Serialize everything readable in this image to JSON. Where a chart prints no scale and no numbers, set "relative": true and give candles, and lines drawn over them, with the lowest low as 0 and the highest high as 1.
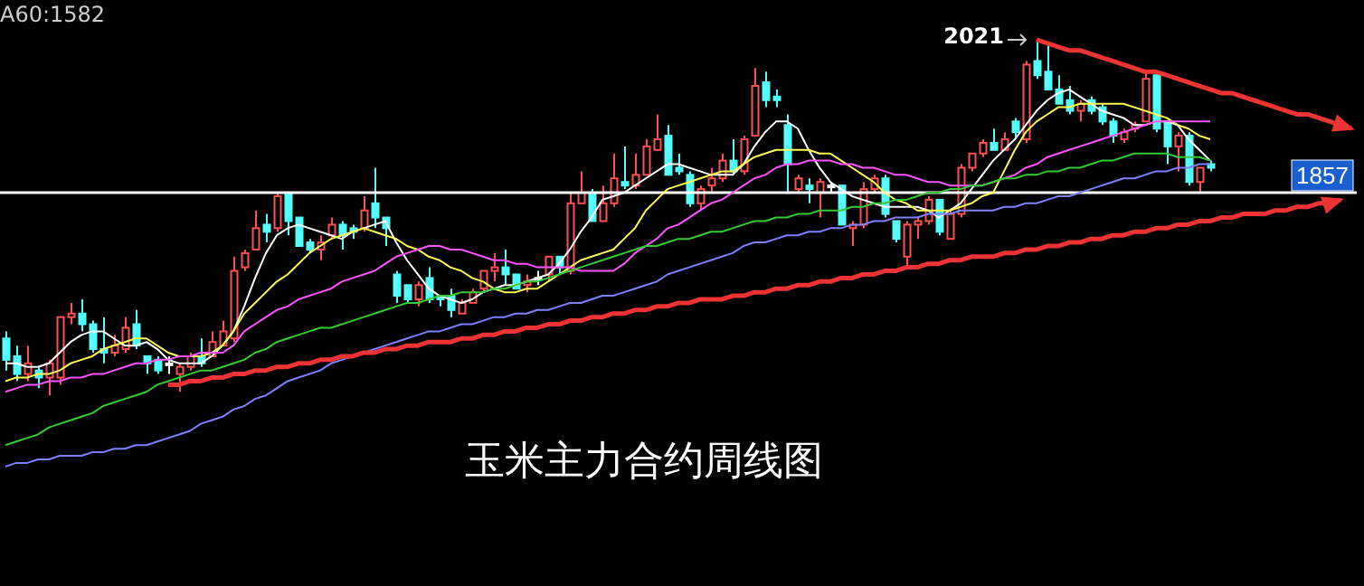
{
  "chart_data": {
    "type": "candlestick",
    "title": "玉米主力合约周线图",
    "relative": true,
    "annotations": [
      "A60:1582",
      "2021",
      "1857"
    ],
    "categories": [
      null,
      null,
      null,
      null,
      null,
      null,
      null,
      null,
      null,
      null,
      null,
      null,
      null,
      null,
      null,
      null,
      null,
      null,
      null,
      null,
      null,
      null,
      null,
      null,
      null,
      null,
      null,
      null,
      null,
      null,
      null,
      null,
      null,
      null,
      null,
      null,
      null,
      null,
      null,
      null,
      null,
      null,
      null,
      null,
      null,
      null,
      null,
      null,
      null,
      null,
      null,
      null,
      null,
      null,
      null,
      null,
      null,
      null,
      null,
      null,
      null,
      null,
      null,
      null,
      null,
      null,
      null,
      null,
      null,
      null,
      null,
      null,
      null,
      null,
      null,
      null,
      null,
      null,
      null,
      null,
      null,
      null,
      null,
      null,
      null,
      null,
      null,
      null,
      null,
      null,
      null,
      null,
      null,
      null,
      null,
      null,
      null,
      null,
      null,
      null,
      null,
      null,
      null,
      null,
      null,
      null,
      null,
      null,
      null,
      null,
      null,
      null,
      null,
      null,
      null,
      null,
      null,
      null,
      null,
      null,
      null,
      null,
      null,
      null,
      null
    ],
    "ohlc": [
      [
        0.16,
        0.18,
        0.07,
        0.1
      ],
      [
        0.11,
        0.14,
        0.04,
        0.06
      ],
      [
        0.06,
        0.14,
        0.04,
        0.09
      ],
      [
        0.07,
        0.08,
        0.02,
        0.05
      ],
      [
        0.05,
        0.1,
        0,
        0.09
      ],
      [
        0.05,
        0.22,
        0.03,
        0.22
      ],
      [
        0.22,
        0.26,
        0.2,
        0.23
      ],
      [
        0.23,
        0.27,
        0.18,
        0.2
      ],
      [
        0.2,
        0.21,
        0.12,
        0.13
      ],
      [
        0.13,
        0.22,
        0.09,
        0.12
      ],
      [
        0.12,
        0.17,
        0.11,
        0.14
      ],
      [
        0.13,
        0.22,
        0.12,
        0.19
      ],
      [
        0.2,
        0.24,
        0.13,
        0.14
      ],
      [
        0.11,
        0.11,
        0.06,
        0.09
      ],
      [
        0.1,
        0.11,
        0.06,
        0.07
      ],
      [
        0.09,
        0.11,
        0.06,
        0.09
      ],
      [
        0.06,
        0.09,
        0.01,
        0.08
      ],
      [
        0.08,
        0.12,
        0.07,
        0.11
      ],
      [
        0.11,
        0.16,
        0.08,
        0.09
      ],
      [
        0.11,
        0.18,
        0.11,
        0.15
      ],
      [
        0.14,
        0.21,
        0.14,
        0.18
      ],
      [
        0.16,
        0.39,
        0.15,
        0.35
      ],
      [
        0.36,
        0.41,
        0.35,
        0.4
      ],
      [
        0.41,
        0.52,
        0.41,
        0.47
      ],
      [
        0.48,
        0.51,
        0.43,
        0.46
      ],
      [
        0.47,
        0.57,
        0.46,
        0.56
      ],
      [
        0.57,
        0.57,
        0.45,
        0.49
      ],
      [
        0.5,
        0.5,
        0.42,
        0.42
      ],
      [
        0.43,
        0.44,
        0.4,
        0.41
      ],
      [
        0.41,
        0.45,
        0.38,
        0.43
      ],
      [
        0.45,
        0.5,
        0.44,
        0.48
      ],
      [
        0.48,
        0.49,
        0.41,
        0.45
      ],
      [
        0.47,
        0.48,
        0.44,
        0.46
      ],
      [
        0.47,
        0.56,
        0.46,
        0.52
      ],
      [
        0.54,
        0.64,
        0.47,
        0.5
      ],
      [
        0.5,
        0.5,
        0.42,
        0.47
      ],
      [
        0.34,
        0.35,
        0.26,
        0.28
      ],
      [
        0.31,
        0.31,
        0.26,
        0.27
      ],
      [
        0.27,
        0.32,
        0.25,
        0.31
      ],
      [
        0.33,
        0.36,
        0.26,
        0.27
      ],
      [
        0.28,
        0.28,
        0.25,
        0.27
      ],
      [
        0.28,
        0.3,
        0.22,
        0.24
      ],
      [
        0.23,
        0.27,
        0.23,
        0.26
      ],
      [
        0.26,
        0.3,
        0.26,
        0.29
      ],
      [
        0.3,
        0.35,
        0.29,
        0.35
      ],
      [
        0.35,
        0.4,
        0.32,
        0.36
      ],
      [
        0.36,
        0.41,
        0.31,
        0.34
      ],
      [
        0.34,
        0.34,
        0.3,
        0.3
      ],
      [
        0.31,
        0.34,
        0.29,
        0.32
      ],
      [
        0.33,
        0.35,
        0.31,
        0.33
      ],
      [
        0.34,
        0.39,
        0.32,
        0.39
      ],
      [
        0.39,
        0.39,
        0.34,
        0.36
      ],
      [
        0.35,
        0.57,
        0.34,
        0.54
      ],
      [
        0.54,
        0.63,
        0.54,
        0.57
      ],
      [
        0.57,
        0.58,
        0.49,
        0.49
      ],
      [
        0.49,
        0.59,
        0.49,
        0.54
      ],
      [
        0.54,
        0.68,
        0.53,
        0.61
      ],
      [
        0.6,
        0.7,
        0.58,
        0.59
      ],
      [
        0.59,
        0.68,
        0.58,
        0.62
      ],
      [
        0.62,
        0.72,
        0.62,
        0.7
      ],
      [
        0.69,
        0.79,
        0.69,
        0.72
      ],
      [
        0.73,
        0.76,
        0.62,
        0.62
      ],
      [
        0.64,
        0.68,
        0.62,
        0.63
      ],
      [
        0.62,
        0.63,
        0.53,
        0.54
      ],
      [
        0.54,
        0.59,
        0.52,
        0.58
      ],
      [
        0.59,
        0.64,
        0.57,
        0.61
      ],
      [
        0.61,
        0.68,
        0.6,
        0.66
      ],
      [
        0.66,
        0.72,
        0.62,
        0.63
      ],
      [
        0.63,
        0.73,
        0.62,
        0.72
      ],
      [
        0.73,
        0.92,
        0.73,
        0.87
      ],
      [
        0.88,
        0.91,
        0.81,
        0.83
      ],
      [
        0.84,
        0.86,
        0.81,
        0.83
      ],
      [
        0.76,
        0.79,
        0.57,
        0.65
      ],
      [
        0.58,
        0.62,
        0.57,
        0.61
      ],
      [
        0.59,
        0.61,
        0.54,
        0.58
      ],
      [
        0.57,
        0.61,
        0.5,
        0.6
      ],
      [
        0.59,
        0.6,
        0.57,
        0.59
      ],
      [
        0.59,
        0.59,
        0.48,
        0.48
      ],
      [
        0.47,
        0.49,
        0.42,
        0.48
      ],
      [
        0.48,
        0.6,
        0.47,
        0.58
      ],
      [
        0.58,
        0.62,
        0.57,
        0.61
      ],
      [
        0.61,
        0.62,
        0.5,
        0.51
      ],
      [
        0.49,
        0.49,
        0.43,
        0.44
      ],
      [
        0.39,
        0.49,
        0.36,
        0.48
      ],
      [
        0.48,
        0.5,
        0.44,
        0.49
      ],
      [
        0.49,
        0.56,
        0.48,
        0.55
      ],
      [
        0.55,
        0.55,
        0.45,
        0.46
      ],
      [
        0.44,
        0.52,
        0.44,
        0.51
      ],
      [
        0.51,
        0.65,
        0.5,
        0.64
      ],
      [
        0.64,
        0.68,
        0.63,
        0.68
      ],
      [
        0.68,
        0.72,
        0.67,
        0.71
      ],
      [
        0.71,
        0.75,
        0.69,
        0.69
      ],
      [
        0.69,
        0.74,
        0.69,
        0.72
      ],
      [
        0.77,
        0.78,
        0.72,
        0.74
      ],
      [
        0.72,
        0.94,
        0.71,
        0.93
      ],
      [
        0.94,
        1.0,
        0.89,
        0.9
      ],
      [
        0.91,
        0.99,
        0.86,
        0.86
      ],
      [
        0.86,
        0.9,
        0.82,
        0.82
      ],
      [
        0.83,
        0.87,
        0.79,
        0.8
      ],
      [
        0.8,
        0.83,
        0.77,
        0.82
      ],
      [
        0.83,
        0.84,
        0.79,
        0.8
      ],
      [
        0.81,
        0.82,
        0.76,
        0.77
      ],
      [
        0.77,
        0.78,
        0.71,
        0.73
      ],
      [
        0.72,
        0.75,
        0.71,
        0.74
      ],
      [
        0.75,
        0.77,
        0.74,
        0.76
      ],
      [
        0.77,
        0.91,
        0.77,
        0.89
      ],
      [
        0.9,
        0.91,
        0.74,
        0.75
      ],
      [
        0.77,
        0.77,
        0.65,
        0.7
      ],
      [
        0.7,
        0.74,
        0.63,
        0.73
      ],
      [
        0.73,
        0.74,
        0.59,
        0.6
      ],
      [
        0.6,
        0.64,
        0.57,
        0.64
      ],
      [
        0.65,
        0.66,
        0.63,
        0.64
      ],
      null,
      null,
      null,
      null,
      null,
      null,
      null,
      null,
      null,
      null,
      null,
      null,
      null
    ],
    "colors": [
      "#54fcfc",
      "#54fcfc",
      "#ff5050",
      "#54fcfc",
      "#ff5050",
      "#ff5050",
      "#ff5050",
      "#54fcfc",
      "#54fcfc",
      "#54fcfc",
      "#ff5050",
      "#ff5050",
      "#54fcfc",
      "#54fcfc",
      "#54fcfc",
      "#ffffff",
      "#ff5050",
      "#ff5050",
      "#54fcfc",
      "#ff5050",
      "#ff5050",
      "#ff5050",
      "#ff5050",
      "#ff5050",
      "#54fcfc",
      "#ff5050",
      "#54fcfc",
      "#54fcfc",
      "#54fcfc",
      "#ff5050",
      "#ff5050",
      "#54fcfc",
      "#54fcfc",
      "#ff5050",
      "#54fcfc",
      "#54fcfc",
      "#54fcfc",
      "#54fcfc",
      "#ff5050",
      "#54fcfc",
      "#54fcfc",
      "#54fcfc",
      "#ff5050",
      "#ff5050",
      "#ff5050",
      "#ff5050",
      "#54fcfc",
      "#54fcfc",
      "#ff5050",
      "#ffffff",
      "#ff5050",
      "#54fcfc",
      "#ff5050",
      "#ff5050",
      "#54fcfc",
      "#ff5050",
      "#ff5050",
      "#54fcfc",
      "#ff5050",
      "#ff5050",
      "#ff5050",
      "#54fcfc",
      "#54fcfc",
      "#54fcfc",
      "#ff5050",
      "#ff5050",
      "#ff5050",
      "#54fcfc",
      "#ff5050",
      "#ff5050",
      "#54fcfc",
      "#54fcfc",
      "#54fcfc",
      "#ff5050",
      "#54fcfc",
      "#ff5050",
      "#ffffff",
      "#54fcfc",
      "#ff5050",
      "#ff5050",
      "#ff5050",
      "#54fcfc",
      "#54fcfc",
      "#ff5050",
      "#ff5050",
      "#ff5050",
      "#54fcfc",
      "#ff5050",
      "#ff5050",
      "#ff5050",
      "#ff5050",
      "#54fcfc",
      "#ff5050",
      "#54fcfc",
      "#ff5050",
      "#54fcfc",
      "#54fcfc",
      "#54fcfc",
      "#54fcfc",
      "#ff5050",
      "#54fcfc",
      "#54fcfc",
      "#54fcfc",
      "#ff5050",
      "#ff5050",
      "#ff5050",
      "#54fcfc",
      "#54fcfc",
      "#ff5050",
      "#54fcfc",
      "#ff5050",
      "#54fcfc",
      null,
      null,
      null,
      null,
      null,
      null,
      null,
      null,
      null,
      null,
      null,
      null,
      null
    ],
    "series": [
      {
        "type": "line",
        "color": "#ffffff",
        "values": [
          0.09,
          0.09,
          0.08,
          0.08,
          0.09,
          0.12,
          0.15,
          0.17,
          0.18,
          0.18,
          0.16,
          0.14,
          0.14,
          0.15,
          0.13,
          0.1,
          0.09,
          0.09,
          0.09,
          0.11,
          0.14,
          0.18,
          0.25,
          0.33,
          0.4,
          0.45,
          0.47,
          0.48,
          0.47,
          0.46,
          0.45,
          0.44,
          0.46,
          0.47,
          0.48,
          0.49,
          0.43,
          0.38,
          0.34,
          0.3,
          0.28,
          0.27,
          0.26,
          0.27,
          0.29,
          0.3,
          0.31,
          0.31,
          0.32,
          0.33,
          0.34,
          0.37,
          0.41,
          0.46,
          0.5,
          0.55,
          0.56,
          0.57,
          0.59,
          0.61,
          0.63,
          0.65,
          0.65,
          0.64,
          0.63,
          0.62,
          0.62,
          0.62,
          0.65,
          0.7,
          0.74,
          0.77,
          0.77,
          0.75,
          0.69,
          0.64,
          0.6,
          0.58,
          0.56,
          0.55,
          0.54,
          0.53,
          0.53,
          0.53,
          0.53,
          0.52,
          0.5,
          0.52,
          0.54,
          0.58,
          0.62,
          0.66,
          0.69,
          0.72,
          0.76,
          0.8,
          0.83,
          0.85,
          0.86,
          0.84,
          0.82,
          0.8,
          0.79,
          0.78,
          0.76,
          0.76,
          0.77,
          0.77,
          0.76,
          0.72,
          0.69,
          0.66,
          null,
          null,
          null,
          null,
          null,
          null,
          null,
          null,
          null,
          null,
          null,
          null,
          null
        ]
      },
      {
        "type": "line",
        "color": "#ffff54",
        "values": [
          0.04,
          0.05,
          0.05,
          0.06,
          0.06,
          0.07,
          0.09,
          0.1,
          0.11,
          0.13,
          0.14,
          0.15,
          0.16,
          0.16,
          0.14,
          0.12,
          0.11,
          0.11,
          0.11,
          0.12,
          0.14,
          0.18,
          0.23,
          0.26,
          0.29,
          0.32,
          0.34,
          0.37,
          0.4,
          0.42,
          0.44,
          0.45,
          0.46,
          0.47,
          0.46,
          0.45,
          0.44,
          0.42,
          0.41,
          0.39,
          0.38,
          0.36,
          0.35,
          0.33,
          0.32,
          0.3,
          0.29,
          0.29,
          0.3,
          0.3,
          0.32,
          0.34,
          0.36,
          0.38,
          0.39,
          0.4,
          0.41,
          0.44,
          0.47,
          0.52,
          0.55,
          0.58,
          0.59,
          0.6,
          0.61,
          0.62,
          0.63,
          0.63,
          0.65,
          0.67,
          0.68,
          0.69,
          0.69,
          0.69,
          0.69,
          0.68,
          0.68,
          0.66,
          0.64,
          0.62,
          0.6,
          0.57,
          0.55,
          0.54,
          0.52,
          0.52,
          0.52,
          0.52,
          0.53,
          0.54,
          0.56,
          0.57,
          0.63,
          0.69,
          0.74,
          0.77,
          0.79,
          0.81,
          0.81,
          0.82,
          0.82,
          0.82,
          0.82,
          0.82,
          0.81,
          0.8,
          0.79,
          0.78,
          0.76,
          0.75,
          0.73,
          0.72,
          null,
          null,
          null,
          null,
          null,
          null,
          null,
          null,
          null,
          null,
          null,
          null,
          null
        ]
      },
      {
        "type": "line",
        "color": "#ff54ff",
        "values": [
          0.01,
          0.02,
          0.03,
          0.03,
          0.04,
          0.04,
          0.05,
          0.05,
          0.06,
          0.06,
          0.07,
          0.08,
          0.09,
          0.09,
          0.1,
          0.1,
          0.11,
          0.11,
          0.12,
          0.12,
          0.12,
          0.14,
          0.18,
          0.2,
          0.22,
          0.24,
          0.25,
          0.27,
          0.28,
          0.29,
          0.3,
          0.32,
          0.33,
          0.34,
          0.35,
          0.37,
          0.39,
          0.4,
          0.41,
          0.42,
          0.42,
          0.41,
          0.41,
          0.4,
          0.39,
          0.38,
          0.38,
          0.37,
          0.37,
          0.36,
          0.36,
          0.36,
          0.36,
          0.35,
          0.35,
          0.35,
          0.35,
          0.37,
          0.4,
          0.42,
          0.44,
          0.47,
          0.48,
          0.5,
          0.52,
          0.54,
          0.55,
          0.57,
          0.59,
          0.61,
          0.62,
          0.64,
          0.65,
          0.65,
          0.66,
          0.66,
          0.66,
          0.65,
          0.65,
          0.64,
          0.64,
          0.63,
          0.62,
          0.62,
          0.61,
          0.6,
          0.6,
          0.59,
          0.59,
          0.59,
          0.59,
          0.6,
          0.61,
          0.62,
          0.64,
          0.65,
          0.67,
          0.68,
          0.69,
          0.7,
          0.71,
          0.72,
          0.73,
          0.74,
          0.75,
          0.76,
          0.77,
          0.77,
          0.77,
          0.77,
          0.77,
          0.77,
          null,
          null,
          null,
          null,
          null,
          null,
          null,
          null,
          null,
          null,
          null,
          null,
          null
        ]
      },
      {
        "type": "line",
        "color": "#33cc33",
        "values": [
          -0.14,
          -0.13,
          -0.12,
          -0.11,
          -0.09,
          -0.08,
          -0.07,
          -0.06,
          -0.05,
          -0.03,
          -0.02,
          -0.01,
          0.0,
          0.01,
          0.03,
          0.04,
          0.05,
          0.06,
          0.07,
          0.07,
          0.08,
          0.09,
          0.1,
          0.12,
          0.13,
          0.15,
          0.16,
          0.17,
          0.18,
          0.19,
          0.19,
          0.2,
          0.21,
          0.22,
          0.23,
          0.24,
          0.25,
          0.26,
          0.26,
          0.27,
          0.28,
          0.28,
          0.29,
          0.29,
          0.29,
          0.3,
          0.3,
          0.31,
          0.32,
          0.32,
          0.33,
          0.34,
          0.35,
          0.36,
          0.37,
          0.38,
          0.39,
          0.4,
          0.41,
          0.42,
          0.42,
          0.43,
          0.44,
          0.44,
          0.45,
          0.46,
          0.46,
          0.47,
          0.48,
          0.49,
          0.49,
          0.5,
          0.5,
          0.51,
          0.51,
          0.52,
          0.52,
          0.52,
          0.53,
          0.53,
          0.54,
          0.54,
          0.55,
          0.55,
          0.56,
          0.57,
          0.57,
          0.58,
          0.58,
          0.59,
          0.59,
          0.6,
          0.61,
          0.61,
          0.62,
          0.62,
          0.63,
          0.63,
          0.64,
          0.64,
          0.65,
          0.66,
          0.66,
          0.67,
          0.68,
          0.68,
          0.68,
          0.68,
          0.67,
          0.67,
          0.67,
          0.66,
          null,
          null,
          null,
          null,
          null,
          null,
          null,
          null,
          null,
          null,
          null,
          null,
          null
        ]
      },
      {
        "type": "line",
        "color": "#8080ff",
        "values": [
          -0.2,
          -0.19,
          -0.19,
          -0.18,
          -0.18,
          -0.17,
          -0.17,
          -0.17,
          -0.16,
          -0.16,
          -0.15,
          -0.15,
          -0.14,
          -0.14,
          -0.13,
          -0.12,
          -0.11,
          -0.1,
          -0.08,
          -0.07,
          -0.06,
          -0.04,
          -0.03,
          -0.01,
          0.0,
          0.02,
          0.04,
          0.05,
          0.06,
          0.07,
          0.09,
          0.1,
          0.11,
          0.12,
          0.13,
          0.14,
          0.15,
          0.16,
          0.17,
          0.18,
          0.18,
          0.19,
          0.2,
          0.2,
          0.21,
          0.22,
          0.22,
          0.23,
          0.23,
          0.24,
          0.24,
          0.25,
          0.26,
          0.26,
          0.27,
          0.28,
          0.28,
          0.29,
          0.3,
          0.31,
          0.32,
          0.34,
          0.35,
          0.36,
          0.37,
          0.38,
          0.39,
          0.4,
          0.42,
          0.43,
          0.43,
          0.44,
          0.45,
          0.45,
          0.46,
          0.46,
          0.47,
          0.47,
          0.48,
          0.48,
          0.49,
          0.49,
          0.5,
          0.5,
          0.5,
          0.51,
          0.51,
          0.51,
          0.52,
          0.52,
          0.52,
          0.52,
          0.53,
          0.53,
          0.54,
          0.54,
          0.55,
          0.56,
          0.56,
          0.57,
          0.58,
          0.59,
          0.6,
          0.61,
          0.61,
          0.62,
          0.63,
          0.63,
          0.64,
          0.64,
          0.65,
          0.65,
          null,
          null,
          null,
          null,
          null,
          null,
          null,
          null,
          null,
          null,
          null,
          null,
          null
        ]
      },
      {
        "type": "line",
        "color": "#ee3333",
        "values": [
          null,
          null,
          null,
          null,
          null,
          null,
          null,
          null,
          null,
          null,
          null,
          null,
          null,
          null,
          null,
          0.03,
          0.03,
          0.04,
          0.04,
          0.05,
          0.05,
          0.06,
          0.06,
          0.07,
          0.07,
          0.08,
          0.08,
          0.09,
          0.09,
          0.1,
          0.1,
          0.11,
          0.11,
          0.12,
          0.12,
          0.13,
          0.13,
          0.14,
          0.14,
          0.15,
          0.15,
          0.15,
          0.16,
          0.16,
          0.17,
          0.17,
          0.18,
          0.18,
          0.19,
          0.19,
          0.2,
          0.2,
          0.21,
          0.21,
          0.22,
          0.22,
          0.23,
          0.23,
          0.24,
          0.24,
          0.25,
          0.25,
          0.26,
          0.26,
          0.27,
          0.27,
          0.27,
          0.28,
          0.28,
          0.29,
          0.29,
          0.3,
          0.3,
          0.31,
          0.31,
          0.32,
          0.32,
          0.33,
          0.33,
          0.34,
          0.34,
          0.35,
          0.35,
          0.36,
          0.36,
          0.37,
          0.37,
          0.38,
          0.38,
          0.39,
          0.39,
          0.39,
          0.4,
          0.4,
          0.41,
          0.41,
          0.42,
          0.42,
          0.43,
          0.43,
          0.44,
          0.44,
          0.45,
          0.45,
          0.46,
          0.46,
          0.47,
          0.47,
          0.48,
          0.48,
          0.49,
          0.49,
          0.5,
          0.5,
          0.51,
          0.51,
          0.51,
          0.52,
          0.52,
          0.53,
          0.53,
          0.54,
          0.54,
          0.55,
          null
        ]
      },
      {
        "type": "line",
        "color": "#ee3333",
        "values": [
          null,
          null,
          null,
          null,
          null,
          null,
          null,
          null,
          null,
          null,
          null,
          null,
          null,
          null,
          null,
          null,
          null,
          null,
          null,
          null,
          null,
          null,
          null,
          null,
          null,
          null,
          null,
          null,
          null,
          null,
          null,
          null,
          null,
          null,
          null,
          null,
          null,
          null,
          null,
          null,
          null,
          null,
          null,
          null,
          null,
          null,
          null,
          null,
          null,
          null,
          null,
          null,
          null,
          null,
          null,
          null,
          null,
          null,
          null,
          null,
          null,
          null,
          null,
          null,
          null,
          null,
          null,
          null,
          null,
          null,
          null,
          null,
          null,
          null,
          null,
          null,
          null,
          null,
          null,
          null,
          null,
          null,
          null,
          null,
          null,
          null,
          null,
          null,
          null,
          null,
          null,
          null,
          null,
          null,
          null,
          1.0,
          0.99,
          0.98,
          0.97,
          0.97,
          0.96,
          0.95,
          0.94,
          0.93,
          0.92,
          0.91,
          0.91,
          0.9,
          0.89,
          0.88,
          0.87,
          0.86,
          0.85,
          0.85,
          0.84,
          0.83,
          0.82,
          0.81,
          0.8,
          0.79,
          0.79,
          0.78,
          0.77,
          0.76,
          0.75
        ]
      }
    ],
    "ref_lines": [
      {
        "axis": "y",
        "value": 0.57,
        "color": "#ffffff"
      }
    ]
  }
}
